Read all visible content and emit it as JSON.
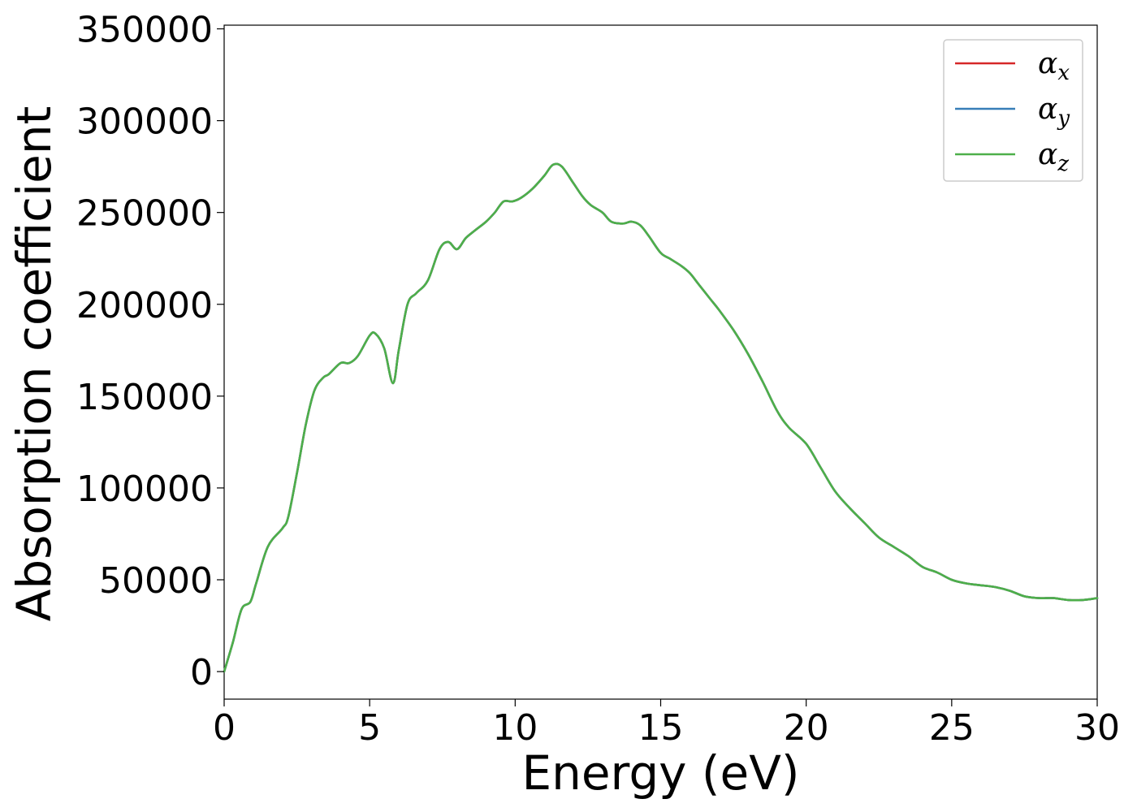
{
  "chart_data": {
    "type": "line",
    "xlabel": "Energy (eV)",
    "ylabel": "Absorption coefficient",
    "xlim": [
      0,
      30
    ],
    "ylim": [
      -15000,
      352000
    ],
    "xticks": [
      0,
      5,
      10,
      15,
      20,
      25,
      30
    ],
    "xtick_labels": [
      "0",
      "5",
      "10",
      "15",
      "20",
      "25",
      "30"
    ],
    "yticks": [
      0,
      50000,
      100000,
      150000,
      200000,
      250000,
      300000,
      350000
    ],
    "ytick_labels": [
      "0",
      "50000",
      "100000",
      "150000",
      "200000",
      "250000",
      "300000",
      "350000"
    ],
    "grid": false,
    "legend_position": "top-right",
    "x": [
      0,
      0.3,
      0.6,
      0.9,
      1.1,
      1.5,
      2.0,
      2.2,
      2.5,
      2.8,
      3.1,
      3.4,
      3.6,
      4.0,
      4.3,
      4.6,
      5.0,
      5.2,
      5.5,
      5.8,
      6.0,
      6.3,
      6.6,
      7.0,
      7.4,
      7.7,
      8.0,
      8.3,
      8.6,
      9.0,
      9.3,
      9.6,
      9.9,
      10.2,
      10.6,
      11.0,
      11.3,
      11.6,
      12.0,
      12.3,
      12.6,
      13.0,
      13.3,
      13.7,
      14.0,
      14.3,
      14.6,
      15.0,
      15.3,
      15.7,
      16.0,
      16.3,
      16.7,
      17.0,
      17.5,
      18.0,
      18.5,
      19.0,
      19.4,
      20.0,
      20.5,
      21.0,
      21.5,
      22.0,
      22.5,
      23.0,
      23.5,
      24.0,
      24.5,
      25.0,
      25.5,
      26.0,
      26.5,
      27.0,
      27.5,
      28.0,
      28.5,
      29.0,
      29.5,
      30.0
    ],
    "series": [
      {
        "name": "α_x",
        "color": "#d62728",
        "values": [
          0,
          16000,
          34000,
          38000,
          48000,
          68000,
          78000,
          84000,
          108000,
          134000,
          153000,
          160000,
          162000,
          168000,
          168000,
          172000,
          183000,
          184000,
          176000,
          157000,
          175000,
          200000,
          206000,
          213000,
          230000,
          234000,
          230000,
          236000,
          240000,
          245000,
          250000,
          256000,
          256000,
          258000,
          263000,
          270000,
          276000,
          275000,
          266000,
          259000,
          254000,
          250000,
          245000,
          244000,
          245000,
          243000,
          237000,
          228000,
          225000,
          221000,
          217000,
          211000,
          203000,
          197000,
          186000,
          173000,
          158000,
          142000,
          133000,
          124000,
          111000,
          98000,
          89000,
          81000,
          73000,
          68000,
          63000,
          57000,
          54000,
          50000,
          48000,
          47000,
          46000,
          44000,
          41000,
          40000,
          40000,
          39000,
          39000,
          40000
        ]
      },
      {
        "name": "α_y",
        "color": "#377eb8",
        "values": [
          0,
          16000,
          34000,
          38000,
          48000,
          68000,
          78000,
          84000,
          108000,
          134000,
          153000,
          160000,
          162000,
          168000,
          168000,
          172000,
          183000,
          184000,
          176000,
          157000,
          175000,
          200000,
          206000,
          213000,
          230000,
          234000,
          230000,
          236000,
          240000,
          245000,
          250000,
          256000,
          256000,
          258000,
          263000,
          270000,
          276000,
          275000,
          266000,
          259000,
          254000,
          250000,
          245000,
          244000,
          245000,
          243000,
          237000,
          228000,
          225000,
          221000,
          217000,
          211000,
          203000,
          197000,
          186000,
          173000,
          158000,
          142000,
          133000,
          124000,
          111000,
          98000,
          89000,
          81000,
          73000,
          68000,
          63000,
          57000,
          54000,
          50000,
          48000,
          47000,
          46000,
          44000,
          41000,
          40000,
          40000,
          39000,
          39000,
          40000
        ]
      },
      {
        "name": "α_z",
        "color": "#4daf4a",
        "values": [
          0,
          16000,
          34000,
          38000,
          48000,
          68000,
          78000,
          84000,
          108000,
          134000,
          153000,
          160000,
          162000,
          168000,
          168000,
          172000,
          183000,
          184000,
          176000,
          157000,
          175000,
          200000,
          206000,
          213000,
          230000,
          234000,
          230000,
          236000,
          240000,
          245000,
          250000,
          256000,
          256000,
          258000,
          263000,
          270000,
          276000,
          275000,
          266000,
          259000,
          254000,
          250000,
          245000,
          244000,
          245000,
          243000,
          237000,
          228000,
          225000,
          221000,
          217000,
          211000,
          203000,
          197000,
          186000,
          173000,
          158000,
          142000,
          133000,
          124000,
          111000,
          98000,
          89000,
          81000,
          73000,
          68000,
          63000,
          57000,
          54000,
          50000,
          48000,
          47000,
          46000,
          44000,
          41000,
          40000,
          40000,
          39000,
          39000,
          40000
        ]
      }
    ],
    "legend": [
      {
        "symbol": "α",
        "sub": "x",
        "color": "#d62728"
      },
      {
        "symbol": "α",
        "sub": "y",
        "color": "#377eb8"
      },
      {
        "symbol": "α",
        "sub": "z",
        "color": "#4daf4a"
      }
    ]
  }
}
